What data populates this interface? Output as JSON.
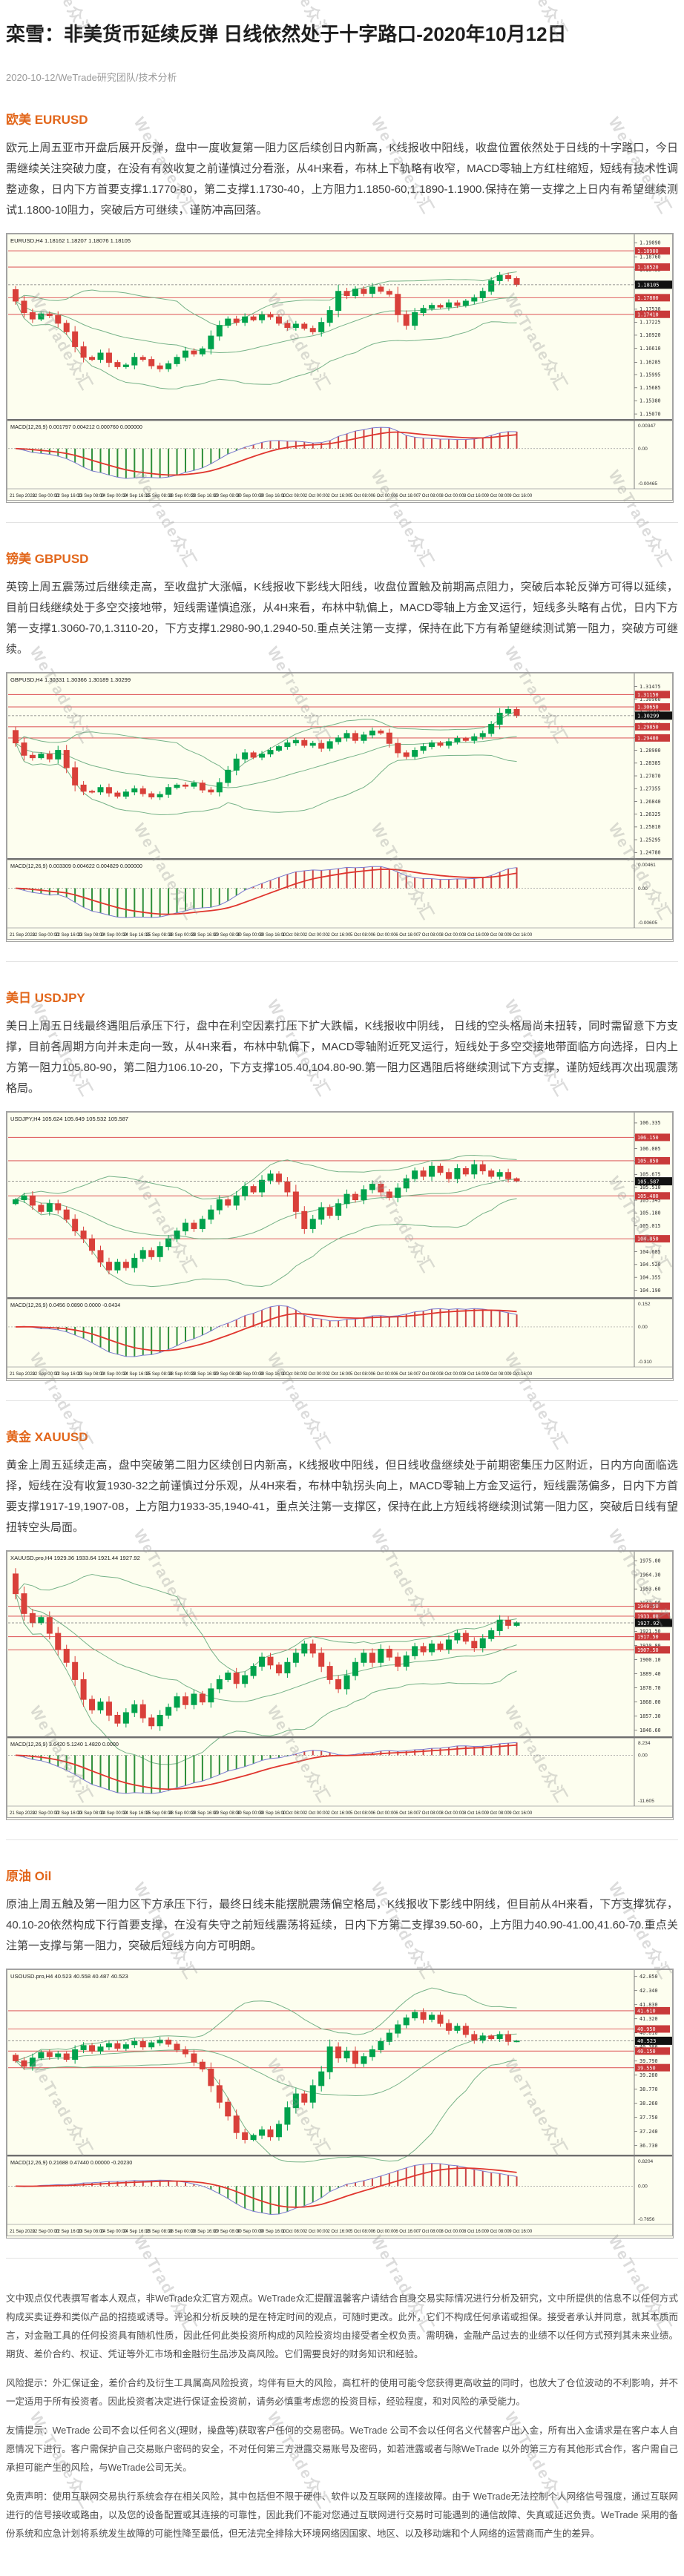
{
  "page": {
    "title": "栾雪：非美货币延续反弹 日线依然处于十字路口-2020年10月12日",
    "meta": "2020-10-12/WeTrade研究团队/技术分析",
    "watermark": "WeTrade众汇",
    "colors": {
      "accent": "#e2661a",
      "chart_bg": "#fdfeef",
      "candle_up": "#00a24c",
      "candle_down": "#d9403a",
      "bollinger": "#6fae82",
      "sr_line": "#e06464",
      "sr_badge": "#c93a3a",
      "macd_line_blue": "#7a7ad0",
      "macd_signal_red": "#e0362e"
    }
  },
  "sections": [
    {
      "heading": "欧美 EURUSD",
      "paragraph": "欧元上周五亚市开盘后展开反弹，盘中一度收复第一阻力区后续创日内新高，K线报收中阳线，收盘位置依然处于日线的十字路口，今日需继续关注突破力度，在没有有效收复之前谨慎过分看涨，从4H来看，布林上下轨略有收窄，MACD零轴上方红柱缩短，短线有技术性调整迹象，日内下方首要支撑1.1770-80，第二支撑1.1730-40，上方阻力1.1850-60,1.1890-1.1900.保持在第一支撑之上日内有希望继续测试1.1800-10阻力，突破后方可继续，谨防冲高回落。"
    },
    {
      "heading": "镑美 GBPUSD",
      "paragraph": "英镑上周五震荡过后继续走高，至收盘扩大涨幅，K线报收下影线大阳线，收盘位置触及前期高点阻力，突破后本轮反弹方可得以延续，目前日线继续处于多空交接地带，短线需谨慎追涨，从4H来看，布林中轨偏上，MACD零轴上方金叉运行，短线多头略有占优，日内下方第一支撑1.3060-70,1.3110-20，下方支撑1.2980-90,1.2940-50.重点关注第一支撑，保持在此下方有希望继续测试第一阻力，突破方可继续。"
    },
    {
      "heading": "美日 USDJPY",
      "paragraph": "美日上周五日线最终遇阻后承压下行，盘中在利空因素打压下扩大跌幅，K线报收中阴线， 日线的空头格局尚未扭转，同时需留意下方支撑，目前各周期方向并未走向一致，从4H来看，布林中轨偏下，MACD零轴附近死叉运行，短线处于多空交接地带面临方向选择，日内上方第一阻力105.80-90，第二阻力106.10-20，下方支撑105.40,104.80-90.第一阻力区遇阻后将继续测试下方支撑，谨防短线再次出现震荡格局。"
    },
    {
      "heading": "黄金 XAUUSD",
      "paragraph": "黄金上周五延续走高，盘中突破第二阻力区续创日内新高，K线报收中阳线，但日线收盘继续处于前期密集压力区附近，日内方向面临选择，短线在没有收复1930-32之前谨慎过分乐观，从4H来看，布林中轨拐头向上，MACD零轴上方金叉运行，短线震荡偏多，日内下方首要支撑1917-19,1907-08，上方阻力1933-35,1940-41，重点关注第一支撑区，保持在此上方短线将继续测试第一阻力区，突破后日线有望扭转空头局面。"
    },
    {
      "heading": "原油 Oil",
      "paragraph": "原油上周五触及第一阻力区下方承压下行，最终日线未能摆脱震荡偏空格局，K线报收下影线中阴线，但目前从4H来看，下方支撑犹存，40.10-20依然构成下行首要支撑，在没有失守之前短线震荡将延续，日内下方第二支撑39.50-60，上方阻力40.90-41.00,41.60-70.重点关注第一支撑与第一阻力，突破后短线方向方可明朗。"
    }
  ],
  "chart_data": [
    {
      "type": "candlestick",
      "symbol_info": "EURUSD,H4  1.18162 1.18207 1.18076 1.18105",
      "macd_label": "MACD(12,26,9) 0.001797 0.004212 0.000760 0.000000",
      "ylim": [
        1.1495,
        1.192
      ],
      "y_ticks": [
        "1.19090",
        "1.18760",
        "1.18455",
        "1.18145",
        "1.17840",
        "1.17530",
        "1.17225",
        "1.16920",
        "1.16610",
        "1.16285",
        "1.15995",
        "1.15685",
        "1.15380",
        "1.15070"
      ],
      "sr_lines": [
        "1.18900",
        "1.18520",
        "1.17800",
        "1.17410"
      ],
      "current_price": "1.18105",
      "macd_axis": {
        "top": "0.00347",
        "zero": "0.00",
        "bottom": "-0.00465"
      },
      "closes": [
        1.1772,
        1.1745,
        1.173,
        1.1742,
        1.1738,
        1.172,
        1.17,
        1.1665,
        1.164,
        1.1635,
        1.165,
        1.1628,
        1.1618,
        1.1622,
        1.164,
        1.1635,
        1.162,
        1.1613,
        1.1625,
        1.164,
        1.1655,
        1.1648,
        1.166,
        1.169,
        1.1715,
        1.173,
        1.1722,
        1.1735,
        1.1728,
        1.174,
        1.1735,
        1.172,
        1.171,
        1.1718,
        1.1708,
        1.17,
        1.1722,
        1.175,
        1.1795,
        1.1785,
        1.18,
        1.179,
        1.1805,
        1.1795,
        1.1788,
        1.174,
        1.1715,
        1.1745,
        1.1755,
        1.1762,
        1.1758,
        1.1768,
        1.1762,
        1.1772,
        1.178,
        1.1795,
        1.182,
        1.1832,
        1.1825,
        1.1811
      ],
      "x_labels": [
        "21 Sep 2020",
        "22 Sep 00:00",
        "22 Sep 16:00",
        "23 Sep 08:00",
        "24 Sep 00:00",
        "24 Sep 16:00",
        "25 Sep 08:00",
        "28 Sep 00:00",
        "28 Sep 16:00",
        "29 Sep 08:00",
        "30 Sep 00:00",
        "30 Sep 16:00",
        "1 Oct 08:00",
        "2 Oct 00:00",
        "2 Oct 16:00",
        "5 Oct 08:00",
        "6 Oct 00:00",
        "6 Oct 16:00",
        "7 Oct 08:00",
        "8 Oct 00:00",
        "8 Oct 16:00",
        "9 Oct 08:00",
        "9 Oct 16:00"
      ]
    },
    {
      "type": "candlestick",
      "symbol_info": "GBPUSD,H4  1.30331 1.30366 1.30189 1.30299",
      "macd_label": "MACD(12,26,9) 0.003309 0.004622 0.004829 0.000000",
      "ylim": [
        1.2455,
        1.3185
      ],
      "y_ticks": [
        "1.31475",
        "1.30960",
        "1.30445",
        "1.29930",
        "1.29415",
        "1.28900",
        "1.28385",
        "1.27870",
        "1.27355",
        "1.26840",
        "1.26325",
        "1.25810",
        "1.25295",
        "1.24780"
      ],
      "sr_lines": [
        "1.31150",
        "1.30650",
        "1.29850",
        "1.29400"
      ],
      "current_price": "1.30299",
      "macd_axis": {
        "top": "0.00461",
        "zero": "0.00",
        "bottom": "-0.00605"
      },
      "closes": [
        1.292,
        1.287,
        1.286,
        1.2875,
        1.2855,
        1.289,
        1.282,
        1.275,
        1.2725,
        1.2722,
        1.274,
        1.2718,
        1.2705,
        1.2722,
        1.2735,
        1.2715,
        1.2702,
        1.2712,
        1.274,
        1.275,
        1.2745,
        1.2758,
        1.273,
        1.2722,
        1.276,
        1.281,
        1.2855,
        1.288,
        1.2862,
        1.2875,
        1.289,
        1.2905,
        1.292,
        1.293,
        1.291,
        1.2918,
        1.2898,
        1.2925,
        1.294,
        1.2958,
        1.293,
        1.2952,
        1.2968,
        1.296,
        1.2918,
        1.288,
        1.2865,
        1.289,
        1.2905,
        1.292,
        1.291,
        1.2925,
        1.2938,
        1.293,
        1.2945,
        1.2958,
        1.2995,
        1.304,
        1.3055,
        1.303
      ],
      "x_labels": [
        "21 Sep 2020",
        "22 Sep 00:00",
        "22 Sep 16:00",
        "23 Sep 08:00",
        "24 Sep 00:00",
        "24 Sep 16:00",
        "25 Sep 08:00",
        "28 Sep 00:00",
        "28 Sep 16:00",
        "29 Sep 08:00",
        "30 Sep 00:00",
        "30 Sep 16:00",
        "1 Oct 08:00",
        "2 Oct 00:00",
        "2 Oct 16:00",
        "5 Oct 08:00",
        "6 Oct 00:00",
        "6 Oct 16:00",
        "7 Oct 08:00",
        "8 Oct 00:00",
        "8 Oct 16:00",
        "9 Oct 08:00",
        "9 Oct 16:00"
      ]
    },
    {
      "type": "candlestick",
      "symbol_info": "USDJPY,H4  105.624 105.649 105.532 105.587",
      "macd_label": "MACD(12,26,9) 0.0456 0.0890 0.0000 -0.0434",
      "ylim": [
        104.1,
        106.42
      ],
      "y_ticks": [
        "106.335",
        "106.170",
        "106.005",
        "105.840",
        "105.675",
        "105.510",
        "105.345",
        "105.180",
        "105.015",
        "104.850",
        "104.685",
        "104.520",
        "104.355",
        "104.190"
      ],
      "sr_lines": [
        "106.150",
        "105.850",
        "105.400",
        "104.850"
      ],
      "current_price": "105.587",
      "macd_axis": {
        "top": "0.152",
        "zero": "0.00",
        "bottom": "-0.310"
      },
      "closes": [
        105.35,
        105.4,
        105.28,
        105.2,
        105.3,
        105.22,
        105.1,
        104.95,
        104.85,
        104.7,
        104.55,
        104.45,
        104.55,
        104.48,
        104.6,
        104.7,
        104.62,
        104.75,
        104.85,
        104.95,
        105.05,
        104.98,
        105.1,
        105.22,
        105.35,
        105.28,
        105.4,
        105.52,
        105.45,
        105.6,
        105.68,
        105.58,
        105.45,
        105.2,
        104.98,
        105.1,
        105.25,
        105.15,
        105.3,
        105.42,
        105.35,
        105.48,
        105.55,
        105.45,
        105.38,
        105.5,
        105.62,
        105.72,
        105.65,
        105.78,
        105.7,
        105.62,
        105.75,
        105.68,
        105.8,
        105.72,
        105.65,
        105.7,
        105.62,
        105.59
      ],
      "x_labels": [
        "21 Sep 2020",
        "22 Sep 00:00",
        "22 Sep 16:00",
        "23 Sep 08:00",
        "24 Sep 00:00",
        "24 Sep 16:00",
        "25 Sep 08:00",
        "28 Sep 00:00",
        "28 Sep 16:00",
        "29 Sep 08:00",
        "30 Sep 00:00",
        "30 Sep 16:00",
        "1 Oct 08:00",
        "2 Oct 00:00",
        "2 Oct 16:00",
        "5 Oct 08:00",
        "6 Oct 00:00",
        "6 Oct 16:00",
        "7 Oct 08:00",
        "8 Oct 00:00",
        "8 Oct 16:00",
        "9 Oct 08:00",
        "9 Oct 16:00"
      ]
    },
    {
      "type": "candlestick",
      "symbol_info": "XAUUSD.pro,H4  1929.36 1933.64 1921.44 1927.92",
      "macd_label": "MACD(12,26,9) 3.6420 5.1240 1.4820 0.0000",
      "ylim": [
        1842,
        1979
      ],
      "y_ticks": [
        "1975.00",
        "1964.30",
        "1953.60",
        "1942.90",
        "1932.20",
        "1921.50",
        "1910.80",
        "1900.10",
        "1889.40",
        "1878.70",
        "1868.00",
        "1857.30",
        "1846.60"
      ],
      "sr_lines": [
        "1940.50",
        "1933.00",
        "1917.50",
        "1907.50"
      ],
      "current_price": "1927.92",
      "macd_axis": {
        "top": "8.234",
        "zero": "0.00",
        "bottom": "-11.605"
      },
      "closes": [
        1950,
        1935,
        1928,
        1932,
        1920,
        1908,
        1898,
        1885,
        1870,
        1862,
        1868,
        1858,
        1852,
        1860,
        1866,
        1856,
        1850,
        1858,
        1864,
        1872,
        1866,
        1874,
        1868,
        1878,
        1885,
        1890,
        1882,
        1888,
        1895,
        1902,
        1896,
        1890,
        1898,
        1905,
        1912,
        1905,
        1895,
        1885,
        1878,
        1888,
        1898,
        1905,
        1898,
        1908,
        1902,
        1895,
        1903,
        1910,
        1906,
        1912,
        1908,
        1915,
        1920,
        1914,
        1909,
        1916,
        1922,
        1930,
        1926,
        1928
      ],
      "x_labels": [
        "21 Sep 2020",
        "22 Sep 00:00",
        "22 Sep 16:00",
        "23 Sep 08:00",
        "24 Sep 00:00",
        "24 Sep 16:00",
        "25 Sep 08:00",
        "28 Sep 00:00",
        "28 Sep 16:00",
        "29 Sep 08:00",
        "30 Sep 00:00",
        "30 Sep 16:00",
        "1 Oct 08:00",
        "2 Oct 00:00",
        "2 Oct 16:00",
        "5 Oct 08:00",
        "6 Oct 00:00",
        "6 Oct 16:00",
        "7 Oct 08:00",
        "8 Oct 00:00",
        "8 Oct 16:00",
        "9 Oct 08:00",
        "9 Oct 16:00"
      ]
    },
    {
      "type": "candlestick",
      "symbol_info": "USOUSD.pro,H4  40.523 40.558 40.487 40.523",
      "macd_label": "MACD(12,26,9) 0.21688 0.47440 0.00000 -0.20230",
      "ylim": [
        36.4,
        42.95
      ],
      "y_ticks": [
        "42.850",
        "42.340",
        "41.830",
        "41.320",
        "40.810",
        "40.300",
        "39.790",
        "39.280",
        "38.770",
        "38.260",
        "37.750",
        "37.240",
        "36.730"
      ],
      "sr_lines": [
        "41.610",
        "40.950",
        "40.150",
        "39.550"
      ],
      "current_price": "40.523",
      "macd_axis": {
        "top": "0.8204",
        "zero": "0.00",
        "bottom": "-0.7656"
      },
      "closes": [
        39.8,
        39.6,
        39.9,
        40.1,
        39.95,
        40.05,
        39.85,
        40.2,
        40.35,
        40.15,
        40.3,
        40.42,
        40.25,
        40.38,
        40.5,
        40.3,
        40.45,
        40.55,
        40.4,
        40.2,
        40.05,
        39.75,
        39.5,
        38.9,
        38.3,
        37.8,
        37.2,
        36.95,
        37.1,
        37.3,
        37.05,
        37.5,
        38.1,
        38.6,
        38.3,
        38.9,
        39.4,
        40.3,
        39.9,
        40.15,
        39.7,
        39.95,
        40.2,
        40.5,
        40.8,
        41.1,
        41.35,
        41.55,
        41.3,
        41.45,
        41.15,
        40.9,
        41.05,
        40.75,
        40.55,
        40.7,
        40.6,
        40.75,
        40.5,
        40.52
      ],
      "x_labels": [
        "21 Sep 2020",
        "22 Sep 00:00",
        "22 Sep 16:00",
        "23 Sep 08:00",
        "24 Sep 00:00",
        "24 Sep 16:00",
        "25 Sep 08:00",
        "28 Sep 00:00",
        "28 Sep 16:00",
        "29 Sep 08:00",
        "30 Sep 00:00",
        "30 Sep 16:00",
        "1 Oct 08:00",
        "2 Oct 00:00",
        "2 Oct 16:00",
        "5 Oct 08:00",
        "6 Oct 00:00",
        "6 Oct 16:00",
        "7 Oct 08:00",
        "8 Oct 00:00",
        "8 Oct 16:00",
        "9 Oct 08:00",
        "9 Oct 16:00"
      ]
    }
  ],
  "footer": {
    "paragraphs": [
      "文中观点仅代表撰写者本人观点，非WeTrade众汇官方观点。WeTrade众汇提醒温馨客户请结合自身交易实际情况进行分析及研究，文中所提供的信息不以任何方式构成买卖证券和类似产品的招揽或诱导。评论和分析反映的是在特定时间的观点，可随时更改。此外，它们不构成任何承诺或担保。接受者承认并同意，就其本质而言，对金融工具的任何投资具有随机性质，因此任何此类投资所构成的风险投资均由接受者全权负责。需明确，金融产品过去的业绩不以任何方式预判其未来业绩。期货、差价合约、权证、凭证等外汇市场和金融衍生品涉及高风险。它们需要良好的财务知识和经验。",
      "风险提示：外汇保证金，差价合约及衍生工具属高风险投资，均伴有巨大的风险，高杠杆的使用可能令您获得更高收益的同时，也放大了仓位波动的不利影响，并不一定适用于所有投资者。因此投资者决定进行保证金投资前，请务必慎重考虑您的投资目标，经验程度，和对风险的承受能力。",
      "友情提示：WeTrade 公司不会以任何名义(理财，操盘等)获取客户任何的交易密码。WeTrade 公司不会以任何名义代替客户出入金，所有出入金请求是在客户本人自愿情况下进行。客户需保护自己交易账户密码的安全，不对任何第三方泄露交易账号及密码，如若泄露或者与除WeTrade 以外的第三方有其他形式合作，客户需自己承担可能产生的风险，与WeTrade公司无关。",
      "免责声明：使用互联网交易执行系统会存在相关风险，其中包括但不限于硬件、软件以及互联网的连接故障。由于 WeTrade无法控制个人网络信号强度，通过互联网进行的信号接收或路由，以及您的设备配置或其连接的可靠性，因此我们不能对您通过互联网进行交易时可能遇到的通信故障、失真或延迟负责。WeTrade 采用的备份系统和应急计划将系统发生故障的可能性降至最低，但无法完全排除大环境网络因国家、地区、以及移动端和个人网络的运营商而产生的差异。"
    ]
  }
}
